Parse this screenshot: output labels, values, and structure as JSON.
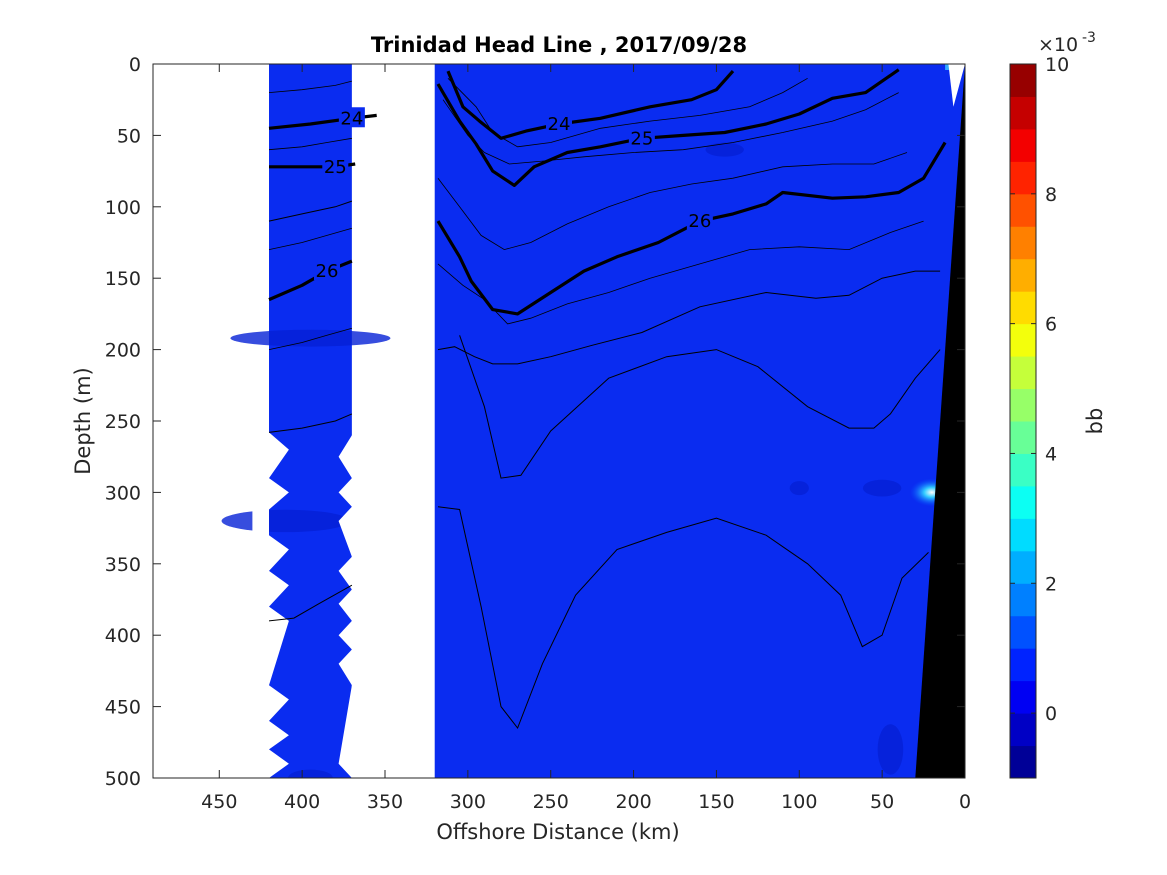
{
  "chart_data": {
    "type": "contour",
    "title": "Trinidad Head Line , 2017/09/28",
    "xlabel": "Offshore Distance (km)",
    "ylabel": "Depth (m)",
    "xlim": [
      490,
      0
    ],
    "ylim": [
      0,
      500
    ],
    "x_reversed": true,
    "y_reversed": true,
    "x_ticks": [
      450,
      400,
      350,
      300,
      250,
      200,
      150,
      100,
      50,
      0
    ],
    "y_ticks": [
      0,
      50,
      100,
      150,
      200,
      250,
      300,
      350,
      400,
      450,
      500
    ],
    "colorbar": {
      "label": "bb",
      "multiplier": "×10",
      "exponent": "-3",
      "range": [
        -1,
        10
      ],
      "ticks": [
        0,
        2,
        4,
        6,
        8,
        10
      ],
      "colormap": "jet",
      "level_step": 0.5
    },
    "fill_value_description": "bb ≈ 0 to 0.5 ×10⁻³ over nearly the whole section",
    "data_gaps_km": [
      [
        490,
        420
      ],
      [
        370,
        320
      ]
    ],
    "bathymetry": [
      [
        30,
        500
      ],
      [
        0,
        0
      ]
    ],
    "density_contours": [
      {
        "name": "24",
        "points": [
          [
            420,
            45
          ],
          [
            395,
            42
          ],
          [
            370,
            38
          ],
          [
            355,
            36
          ]
        ]
      },
      {
        "name": "25",
        "points": [
          [
            420,
            72
          ],
          [
            400,
            72
          ],
          [
            380,
            72
          ],
          [
            368,
            70
          ]
        ]
      },
      {
        "name": "26",
        "points": [
          [
            420,
            165
          ],
          [
            400,
            155
          ],
          [
            385,
            145
          ],
          [
            370,
            138
          ]
        ]
      },
      {
        "name": "24",
        "points": [
          [
            312,
            5
          ],
          [
            303,
            30
          ],
          [
            293,
            40
          ],
          [
            280,
            52
          ],
          [
            265,
            47
          ],
          [
            245,
            42
          ],
          [
            220,
            38
          ],
          [
            190,
            30
          ],
          [
            165,
            25
          ],
          [
            150,
            18
          ],
          [
            140,
            5
          ]
        ]
      },
      {
        "name": "25",
        "points": [
          [
            318,
            14
          ],
          [
            305,
            40
          ],
          [
            295,
            56
          ],
          [
            285,
            75
          ],
          [
            272,
            85
          ],
          [
            260,
            72
          ],
          [
            240,
            62
          ],
          [
            220,
            58
          ],
          [
            195,
            52
          ],
          [
            170,
            50
          ],
          [
            145,
            48
          ],
          [
            120,
            42
          ],
          [
            100,
            35
          ],
          [
            80,
            24
          ],
          [
            60,
            20
          ],
          [
            40,
            4
          ]
        ]
      },
      {
        "name": "26",
        "points": [
          [
            318,
            110
          ],
          [
            305,
            135
          ],
          [
            298,
            152
          ],
          [
            285,
            172
          ],
          [
            270,
            175
          ],
          [
            250,
            160
          ],
          [
            230,
            145
          ],
          [
            210,
            135
          ],
          [
            185,
            125
          ],
          [
            160,
            110
          ],
          [
            140,
            105
          ],
          [
            120,
            98
          ],
          [
            110,
            90
          ],
          [
            80,
            94
          ],
          [
            60,
            93
          ],
          [
            40,
            90
          ],
          [
            25,
            80
          ],
          [
            12,
            55
          ]
        ]
      }
    ],
    "thin_contours": [
      {
        "points": [
          [
            318,
            200
          ],
          [
            308,
            198
          ],
          [
            296,
            205
          ],
          [
            285,
            210
          ],
          [
            270,
            210
          ],
          [
            250,
            205
          ],
          [
            225,
            197
          ],
          [
            195,
            188
          ],
          [
            160,
            170
          ],
          [
            120,
            160
          ],
          [
            90,
            164
          ],
          [
            70,
            162
          ],
          [
            50,
            150
          ],
          [
            30,
            145
          ],
          [
            15,
            145
          ]
        ]
      },
      {
        "points": [
          [
            305,
            190
          ],
          [
            290,
            240
          ],
          [
            280,
            290
          ],
          [
            268,
            288
          ],
          [
            250,
            257
          ],
          [
            215,
            220
          ],
          [
            180,
            205
          ],
          [
            150,
            200
          ],
          [
            125,
            212
          ],
          [
            95,
            240
          ],
          [
            70,
            255
          ],
          [
            55,
            255
          ],
          [
            45,
            245
          ],
          [
            30,
            220
          ],
          [
            15,
            200
          ]
        ]
      },
      {
        "points": [
          [
            318,
            310
          ],
          [
            305,
            312
          ],
          [
            292,
            380
          ],
          [
            280,
            450
          ],
          [
            270,
            465
          ],
          [
            255,
            420
          ],
          [
            235,
            372
          ],
          [
            210,
            340
          ],
          [
            180,
            328
          ],
          [
            150,
            318
          ],
          [
            120,
            330
          ],
          [
            95,
            350
          ],
          [
            75,
            372
          ],
          [
            62,
            408
          ],
          [
            50,
            400
          ],
          [
            38,
            360
          ],
          [
            22,
            342
          ]
        ]
      },
      {
        "points": [
          [
            420,
            390
          ],
          [
            405,
            388
          ],
          [
            390,
            378
          ],
          [
            370,
            365
          ]
        ]
      },
      {
        "points": [
          [
            420,
            258
          ],
          [
            400,
            255
          ],
          [
            380,
            250
          ],
          [
            370,
            245
          ]
        ]
      },
      {
        "points": [
          [
            420,
            110
          ],
          [
            400,
            105
          ],
          [
            380,
            100
          ],
          [
            370,
            96
          ]
        ]
      }
    ]
  }
}
